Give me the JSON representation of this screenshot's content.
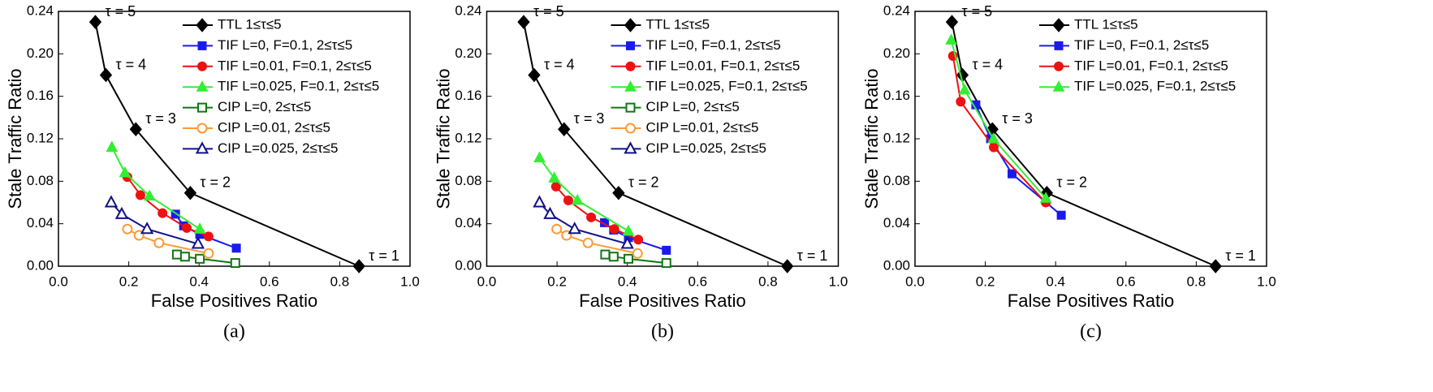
{
  "chart_data": [
    {
      "type": "line",
      "caption": "(a)",
      "x_label": "False Positives Ratio",
      "y_label": "Stale Traffic Ratio",
      "xlim": [
        0,
        1
      ],
      "ylim": [
        0,
        0.24
      ],
      "xticks": [
        {
          "value": 0,
          "label": "0.0"
        },
        {
          "value": 0.2,
          "label": "0.2"
        },
        {
          "value": 0.4,
          "label": "0.4"
        },
        {
          "value": 0.6,
          "label": "0.6"
        },
        {
          "value": 0.8,
          "label": "0.8"
        },
        {
          "value": 1,
          "label": "1.0"
        }
      ],
      "yticks": [
        {
          "value": 0,
          "label": "0.00"
        },
        {
          "value": 0.04,
          "label": "0.04"
        },
        {
          "value": 0.08,
          "label": "0.08"
        },
        {
          "value": 0.12,
          "label": "0.12"
        },
        {
          "value": 0.16,
          "label": "0.16"
        },
        {
          "value": 0.2,
          "label": "0.20"
        },
        {
          "value": 0.24,
          "label": "0.24"
        }
      ],
      "series": [
        {
          "name": "TTL 1≤τ≤5",
          "color": "#000000",
          "marker": "diamond",
          "x": [
            0.105,
            0.135,
            0.22,
            0.375,
            0.855
          ],
          "values": [
            0.23,
            0.18,
            0.129,
            0.069,
            0.0
          ],
          "point_labels": [
            "τ = 5",
            "τ = 4",
            "τ = 3",
            "τ = 2",
            "τ = 1"
          ]
        },
        {
          "name": "TIF L=0, F=0.1, 2≤τ≤5",
          "color": "#1a1aee",
          "marker": "square",
          "x": [
            0.333,
            0.356,
            0.402,
            0.506
          ],
          "values": [
            0.049,
            0.038,
            0.03,
            0.017
          ]
        },
        {
          "name": "TIF L=0.01, F=0.1, 2≤τ≤5",
          "color": "#ee1111",
          "marker": "circle",
          "x": [
            0.196,
            0.233,
            0.296,
            0.365,
            0.427
          ],
          "values": [
            0.084,
            0.067,
            0.05,
            0.036,
            0.028
          ]
        },
        {
          "name": "TIF L=0.025, F=0.1, 2≤τ≤5",
          "color": "#33ee33",
          "marker": "triangle",
          "x": [
            0.152,
            0.189,
            0.259,
            0.402
          ],
          "values": [
            0.112,
            0.088,
            0.066,
            0.035
          ]
        },
        {
          "name": "CIP L=0, 2≤τ≤5",
          "color": "#117711",
          "marker": "open-square",
          "x": [
            0.337,
            0.36,
            0.402,
            0.503
          ],
          "values": [
            0.011,
            0.009,
            0.007,
            0.003
          ]
        },
        {
          "name": "CIP L=0.01, 2≤τ≤5",
          "color": "#ff9933",
          "marker": "open-circle",
          "x": [
            0.196,
            0.229,
            0.286,
            0.427
          ],
          "values": [
            0.035,
            0.029,
            0.022,
            0.012
          ]
        },
        {
          "name": "CIP L=0.025, 2≤τ≤5",
          "color": "#111188",
          "marker": "open-triangle",
          "x": [
            0.15,
            0.18,
            0.252,
            0.397
          ],
          "values": [
            0.06,
            0.049,
            0.035,
            0.021
          ]
        }
      ]
    },
    {
      "type": "line",
      "caption": "(b)",
      "x_label": "False Positives Ratio",
      "y_label": "Stale Traffic Ratio",
      "xlim": [
        0,
        1
      ],
      "ylim": [
        0,
        0.24
      ],
      "xticks": [
        {
          "value": 0,
          "label": "0.0"
        },
        {
          "value": 0.2,
          "label": "0.2"
        },
        {
          "value": 0.4,
          "label": "0.4"
        },
        {
          "value": 0.6,
          "label": "0.6"
        },
        {
          "value": 0.8,
          "label": "0.8"
        },
        {
          "value": 1,
          "label": "1.0"
        }
      ],
      "yticks": [
        {
          "value": 0,
          "label": "0.00"
        },
        {
          "value": 0.04,
          "label": "0.04"
        },
        {
          "value": 0.08,
          "label": "0.08"
        },
        {
          "value": 0.12,
          "label": "0.12"
        },
        {
          "value": 0.16,
          "label": "0.16"
        },
        {
          "value": 0.2,
          "label": "0.20"
        },
        {
          "value": 0.24,
          "label": "0.24"
        }
      ],
      "series": [
        {
          "name": "TTL 1≤τ≤5",
          "color": "#000000",
          "marker": "diamond",
          "x": [
            0.105,
            0.135,
            0.22,
            0.375,
            0.855
          ],
          "values": [
            0.23,
            0.18,
            0.129,
            0.069,
            0.0
          ],
          "point_labels": [
            "τ = 5",
            "τ = 4",
            "τ = 3",
            "τ = 2",
            "τ = 1"
          ]
        },
        {
          "name": "TIF L=0, F=0.1, 2≤τ≤5",
          "color": "#1a1aee",
          "marker": "square",
          "x": [
            0.335,
            0.361,
            0.403,
            0.511
          ],
          "values": [
            0.041,
            0.034,
            0.027,
            0.015
          ]
        },
        {
          "name": "TIF L=0.01, F=0.1, 2≤τ≤5",
          "color": "#ee1111",
          "marker": "circle",
          "x": [
            0.197,
            0.232,
            0.297,
            0.363,
            0.431
          ],
          "values": [
            0.075,
            0.062,
            0.046,
            0.035,
            0.025
          ]
        },
        {
          "name": "TIF L=0.025, F=0.1, 2≤τ≤5",
          "color": "#33ee33",
          "marker": "triangle",
          "x": [
            0.15,
            0.192,
            0.258,
            0.403
          ],
          "values": [
            0.102,
            0.083,
            0.062,
            0.033
          ]
        },
        {
          "name": "CIP L=0, 2≤τ≤5",
          "color": "#117711",
          "marker": "open-square",
          "x": [
            0.337,
            0.361,
            0.403,
            0.511
          ],
          "values": [
            0.011,
            0.009,
            0.007,
            0.003
          ]
        },
        {
          "name": "CIP L=0.01, 2≤τ≤5",
          "color": "#ff9933",
          "marker": "open-circle",
          "x": [
            0.199,
            0.227,
            0.288,
            0.429
          ],
          "values": [
            0.035,
            0.029,
            0.022,
            0.012
          ]
        },
        {
          "name": "CIP L=0.025, 2≤τ≤5",
          "color": "#111188",
          "marker": "open-triangle",
          "x": [
            0.15,
            0.18,
            0.25,
            0.4
          ],
          "values": [
            0.06,
            0.049,
            0.035,
            0.021
          ]
        }
      ]
    },
    {
      "type": "line",
      "caption": "(c)",
      "x_label": "False Positives Ratio",
      "y_label": "Stale Traffic Ratio",
      "xlim": [
        0,
        1
      ],
      "ylim": [
        0,
        0.24
      ],
      "xticks": [
        {
          "value": 0,
          "label": "0.0"
        },
        {
          "value": 0.2,
          "label": "0.2"
        },
        {
          "value": 0.4,
          "label": "0.4"
        },
        {
          "value": 0.6,
          "label": "0.6"
        },
        {
          "value": 0.8,
          "label": "0.8"
        },
        {
          "value": 1,
          "label": "1.0"
        }
      ],
      "yticks": [
        {
          "value": 0,
          "label": "0.00"
        },
        {
          "value": 0.04,
          "label": "0.04"
        },
        {
          "value": 0.08,
          "label": "0.08"
        },
        {
          "value": 0.12,
          "label": "0.12"
        },
        {
          "value": 0.16,
          "label": "0.16"
        },
        {
          "value": 0.2,
          "label": "0.20"
        },
        {
          "value": 0.24,
          "label": "0.24"
        }
      ],
      "series": [
        {
          "name": "TTL 1≤τ≤5",
          "color": "#000000",
          "marker": "diamond",
          "x": [
            0.105,
            0.135,
            0.22,
            0.375,
            0.855
          ],
          "values": [
            0.23,
            0.18,
            0.129,
            0.069,
            0.0
          ],
          "point_labels": [
            "τ = 5",
            "τ = 4",
            "τ = 3",
            "τ = 2",
            "τ = 1"
          ]
        },
        {
          "name": "TIF L=0, F=0.1, 2≤τ≤5",
          "color": "#1a1aee",
          "marker": "square",
          "x": [
            0.173,
            0.215,
            0.276,
            0.416
          ],
          "values": [
            0.152,
            0.12,
            0.087,
            0.048
          ]
        },
        {
          "name": "TIF L=0.01, F=0.1, 2≤τ≤5",
          "color": "#ee1111",
          "marker": "circle",
          "x": [
            0.108,
            0.13,
            0.224,
            0.372
          ],
          "values": [
            0.198,
            0.155,
            0.112,
            0.06
          ]
        },
        {
          "name": "TIF L=0.025, F=0.1, 2≤τ≤5",
          "color": "#33ee33",
          "marker": "triangle",
          "x": [
            0.103,
            0.141,
            0.223,
            0.372
          ],
          "values": [
            0.213,
            0.166,
            0.12,
            0.064
          ]
        }
      ]
    }
  ]
}
